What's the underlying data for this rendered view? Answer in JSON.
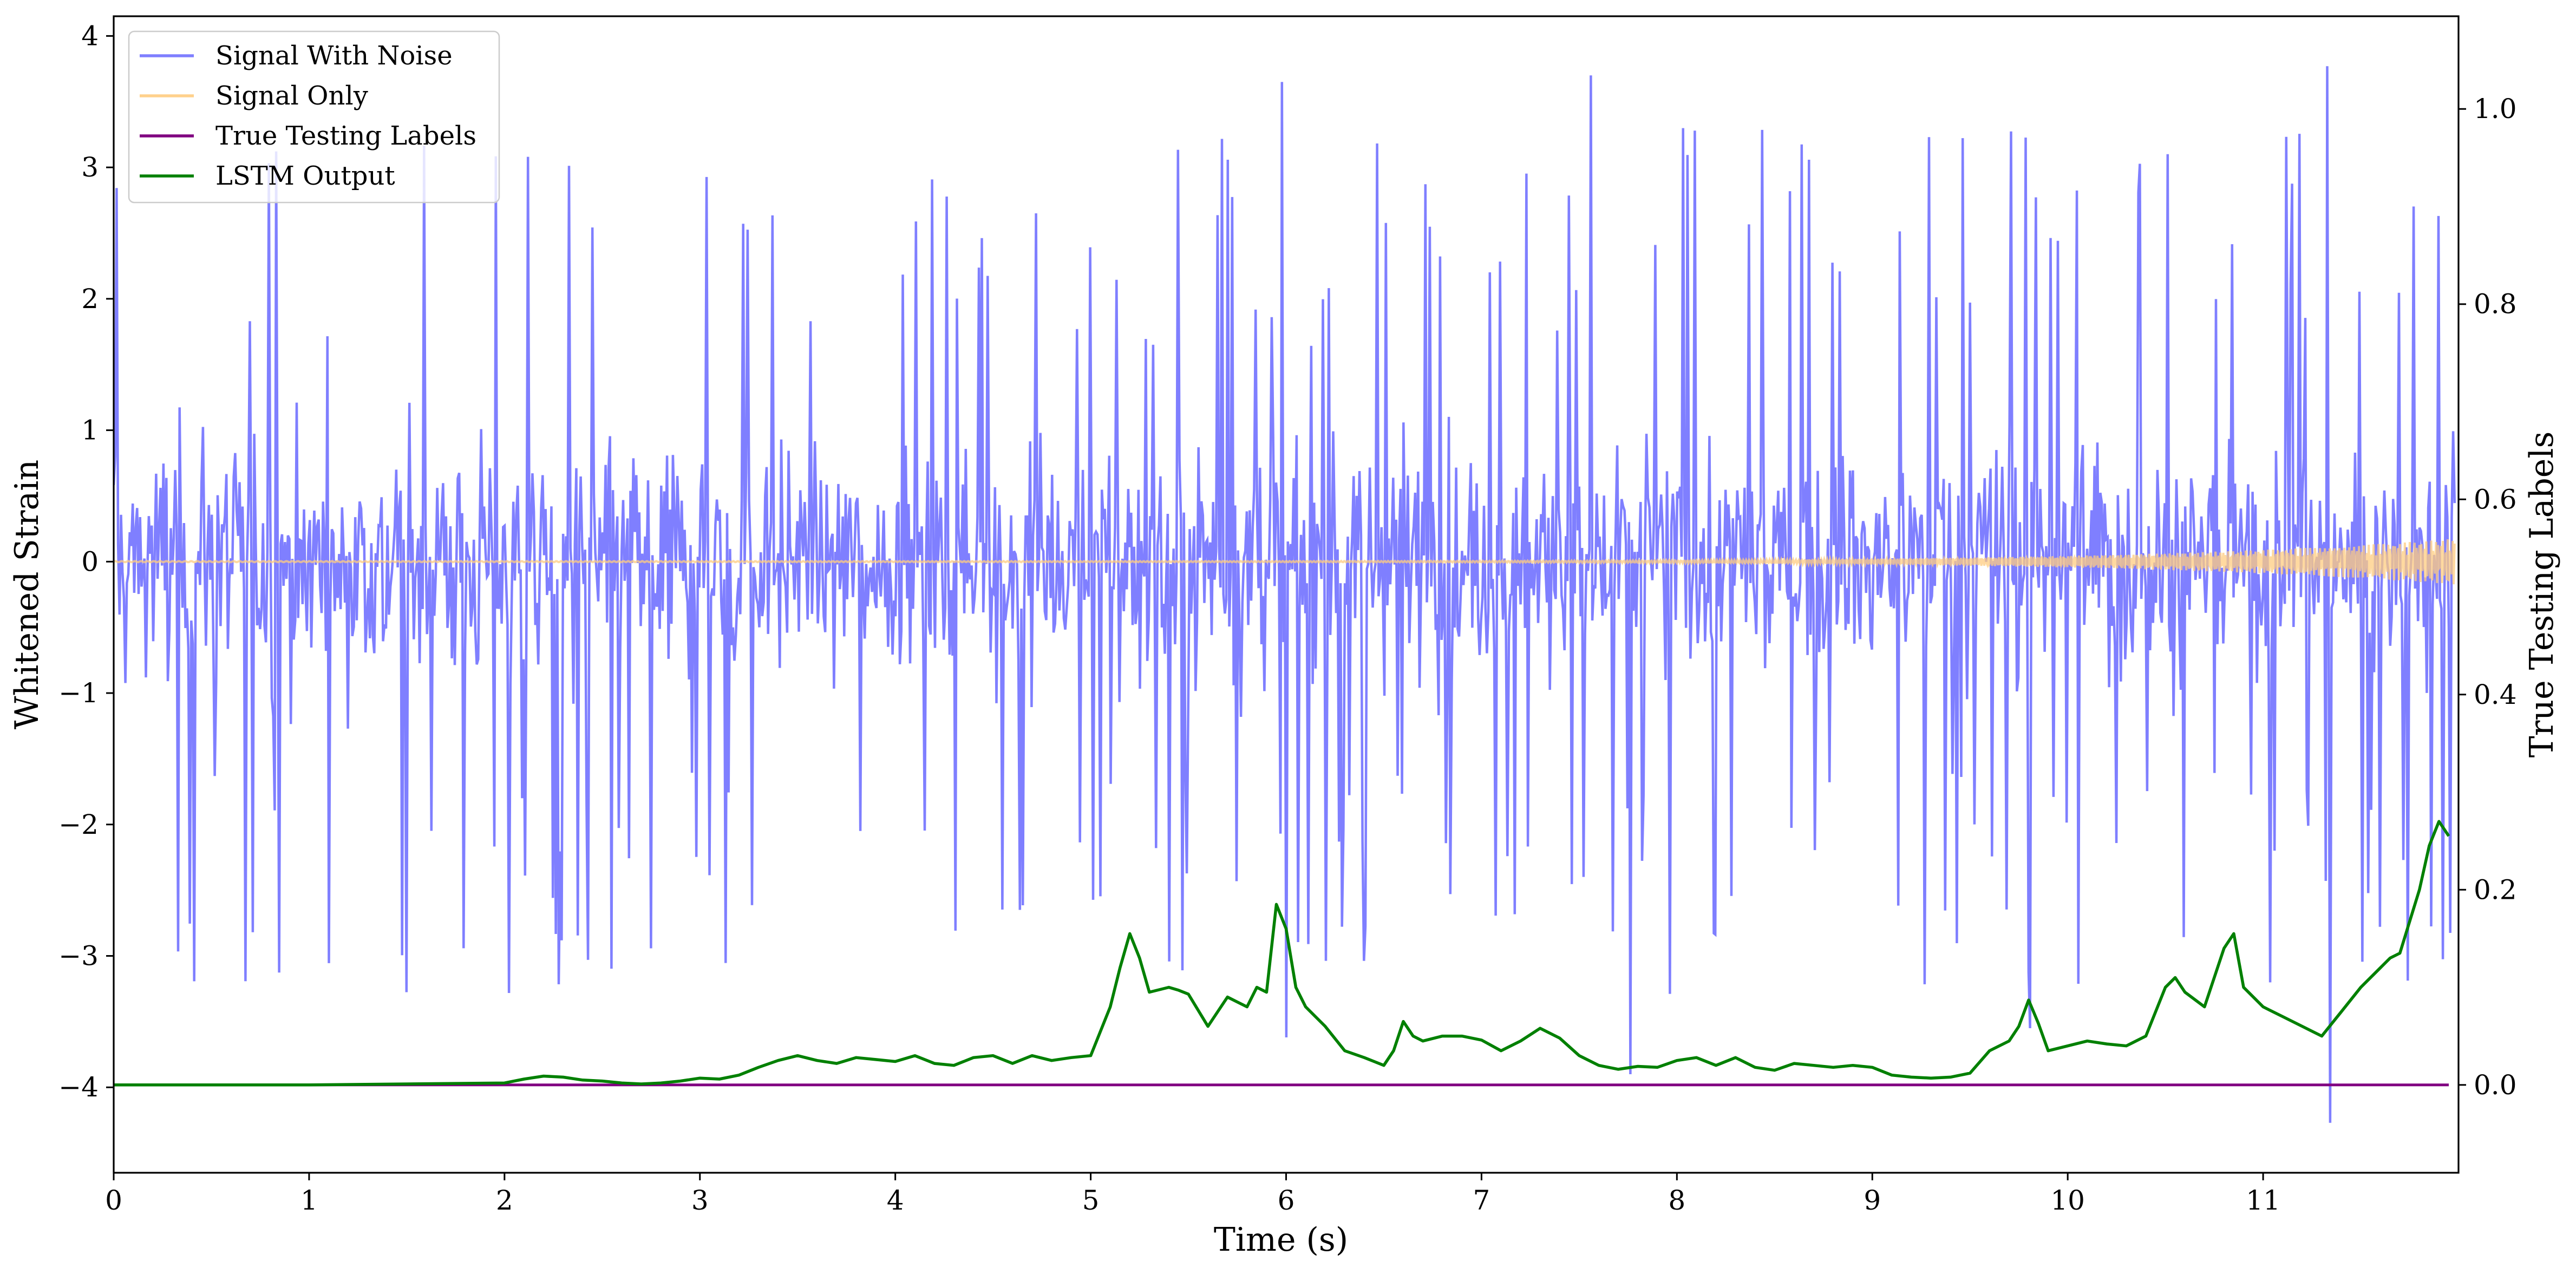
{
  "chart_data": {
    "type": "line",
    "title": "",
    "xlabel": "Time (s)",
    "ylabel": "Whitened Strain",
    "y2label": "True Testing Labels",
    "xlim": [
      0,
      12
    ],
    "ylim": [
      -4.65,
      4.15
    ],
    "y2lim": [
      -0.09,
      1.095
    ],
    "x_ticks": [
      0,
      1,
      2,
      3,
      4,
      5,
      6,
      7,
      8,
      9,
      10,
      11
    ],
    "x_tick_labels": [
      "0",
      "1",
      "2",
      "3",
      "4",
      "5",
      "6",
      "7",
      "8",
      "9",
      "10",
      "11"
    ],
    "y_ticks": [
      -4,
      -3,
      -2,
      -1,
      0,
      1,
      2,
      3,
      4
    ],
    "y_tick_labels": [
      "−4",
      "−3",
      "−2",
      "−1",
      "0",
      "1",
      "2",
      "3",
      "4"
    ],
    "y2_ticks": [
      0.0,
      0.2,
      0.4,
      0.6,
      0.8,
      1.0
    ],
    "y2_tick_labels": [
      "0.0",
      "0.2",
      "0.4",
      "0.6",
      "0.8",
      "1.0"
    ],
    "grid": false,
    "legend_position": "top-left",
    "series": [
      {
        "name": "Signal With Noise",
        "axis": "left",
        "color": "#7f7fff",
        "style": "dense noise, band roughly -1.3 to 1.3 with spikes",
        "samples": 1600,
        "core_amplitude": 1.2,
        "spike_max": 3.77,
        "spike_min": -4.27,
        "notable_spikes": [
          {
            "x": 5.98,
            "y": 3.65
          },
          {
            "x": 7.56,
            "y": 3.7
          },
          {
            "x": 11.33,
            "y": 3.77
          },
          {
            "x": 11.34,
            "y": -4.27
          },
          {
            "x": 7.76,
            "y": -3.9
          },
          {
            "x": 6.0,
            "y": -3.62
          },
          {
            "x": 9.81,
            "y": -3.55
          }
        ]
      },
      {
        "name": "Signal Only",
        "axis": "left",
        "color": "#ffcc80",
        "style": "chirp: near-zero amplitude growing toward the end",
        "amplitude_end": 0.17
      },
      {
        "name": "True Testing Labels",
        "axis": "right",
        "color": "#800080",
        "x": [
          0,
          11.95
        ],
        "values": [
          0.0,
          0.0
        ]
      },
      {
        "name": "LSTM Output",
        "axis": "right",
        "color": "#008000",
        "x": [
          0,
          0.5,
          1.0,
          1.5,
          2.0,
          2.1,
          2.2,
          2.3,
          2.4,
          2.5,
          2.6,
          2.7,
          2.8,
          2.9,
          3.0,
          3.1,
          3.2,
          3.3,
          3.4,
          3.5,
          3.6,
          3.7,
          3.8,
          3.9,
          4.0,
          4.1,
          4.2,
          4.3,
          4.4,
          4.5,
          4.6,
          4.7,
          4.8,
          4.9,
          5.0,
          5.1,
          5.15,
          5.2,
          5.25,
          5.3,
          5.4,
          5.45,
          5.5,
          5.6,
          5.7,
          5.8,
          5.85,
          5.9,
          5.95,
          6.0,
          6.05,
          6.1,
          6.15,
          6.2,
          6.3,
          6.4,
          6.5,
          6.55,
          6.6,
          6.65,
          6.7,
          6.8,
          6.9,
          7.0,
          7.1,
          7.2,
          7.3,
          7.4,
          7.5,
          7.6,
          7.7,
          7.8,
          7.9,
          8.0,
          8.1,
          8.2,
          8.3,
          8.4,
          8.5,
          8.6,
          8.7,
          8.8,
          8.9,
          9.0,
          9.1,
          9.2,
          9.3,
          9.4,
          9.5,
          9.6,
          9.7,
          9.75,
          9.8,
          9.85,
          9.9,
          10.0,
          10.1,
          10.2,
          10.3,
          10.4,
          10.5,
          10.55,
          10.6,
          10.7,
          10.8,
          10.85,
          10.9,
          11.0,
          11.1,
          11.2,
          11.3,
          11.4,
          11.5,
          11.6,
          11.65,
          11.7,
          11.8,
          11.85,
          11.9,
          11.95
        ],
        "values": [
          0.0,
          0.0,
          0.0,
          0.001,
          0.002,
          0.006,
          0.009,
          0.008,
          0.005,
          0.004,
          0.002,
          0.001,
          0.002,
          0.004,
          0.007,
          0.006,
          0.01,
          0.018,
          0.025,
          0.03,
          0.025,
          0.022,
          0.028,
          0.026,
          0.024,
          0.03,
          0.022,
          0.02,
          0.028,
          0.03,
          0.022,
          0.03,
          0.025,
          0.028,
          0.03,
          0.08,
          0.12,
          0.155,
          0.13,
          0.095,
          0.1,
          0.097,
          0.093,
          0.06,
          0.09,
          0.08,
          0.1,
          0.095,
          0.185,
          0.16,
          0.1,
          0.08,
          0.07,
          0.06,
          0.035,
          0.028,
          0.02,
          0.035,
          0.065,
          0.05,
          0.045,
          0.05,
          0.05,
          0.046,
          0.035,
          0.045,
          0.058,
          0.048,
          0.03,
          0.02,
          0.016,
          0.019,
          0.018,
          0.025,
          0.028,
          0.02,
          0.028,
          0.018,
          0.015,
          0.022,
          0.02,
          0.018,
          0.02,
          0.018,
          0.01,
          0.008,
          0.007,
          0.008,
          0.012,
          0.035,
          0.045,
          0.06,
          0.087,
          0.063,
          0.035,
          0.04,
          0.045,
          0.042,
          0.04,
          0.05,
          0.1,
          0.11,
          0.095,
          0.08,
          0.14,
          0.155,
          0.1,
          0.08,
          0.07,
          0.06,
          0.05,
          0.075,
          0.1,
          0.12,
          0.13,
          0.135,
          0.2,
          0.245,
          0.27,
          0.255
        ]
      }
    ]
  }
}
